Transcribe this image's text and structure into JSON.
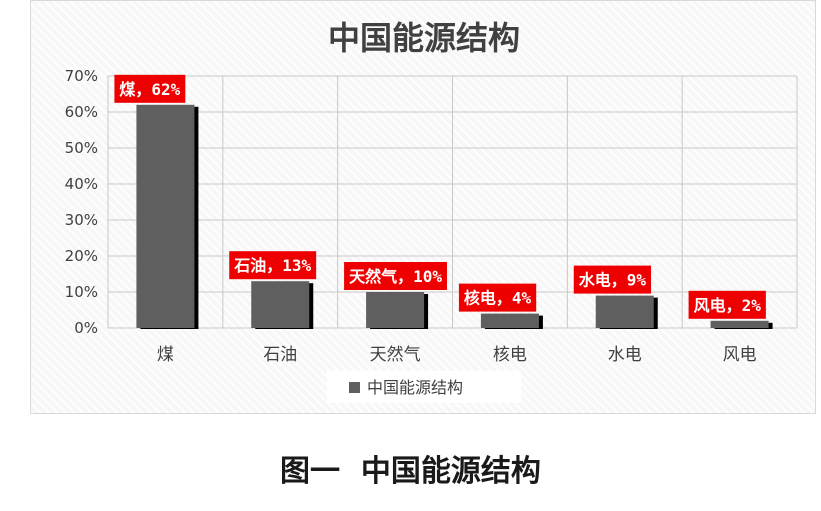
{
  "chart_data": {
    "type": "bar",
    "title": "中国能源结构",
    "categories": [
      "煤",
      "石油",
      "天然气",
      "核电",
      "水电",
      "风电"
    ],
    "series": [
      {
        "name": "中国能源结构",
        "values": [
          62,
          13,
          10,
          4,
          9,
          2
        ]
      }
    ],
    "data_labels": [
      "煤，62%",
      "石油，13%",
      "天然气，10%",
      "核电，4%",
      "水电，9%",
      "风电，2%"
    ],
    "ylim": [
      0,
      70
    ],
    "yticks": [
      "0%",
      "10%",
      "20%",
      "30%",
      "40%",
      "50%",
      "60%",
      "70%"
    ],
    "grid": true,
    "legend_position": "bottom",
    "colors": {
      "bar": "#5f5f5f",
      "bar_shadow": "#000000",
      "label_bg": "#ee0000",
      "label_text": "#ffffff",
      "grid": "#c8c8c8"
    }
  },
  "caption": "图一  中国能源结构"
}
